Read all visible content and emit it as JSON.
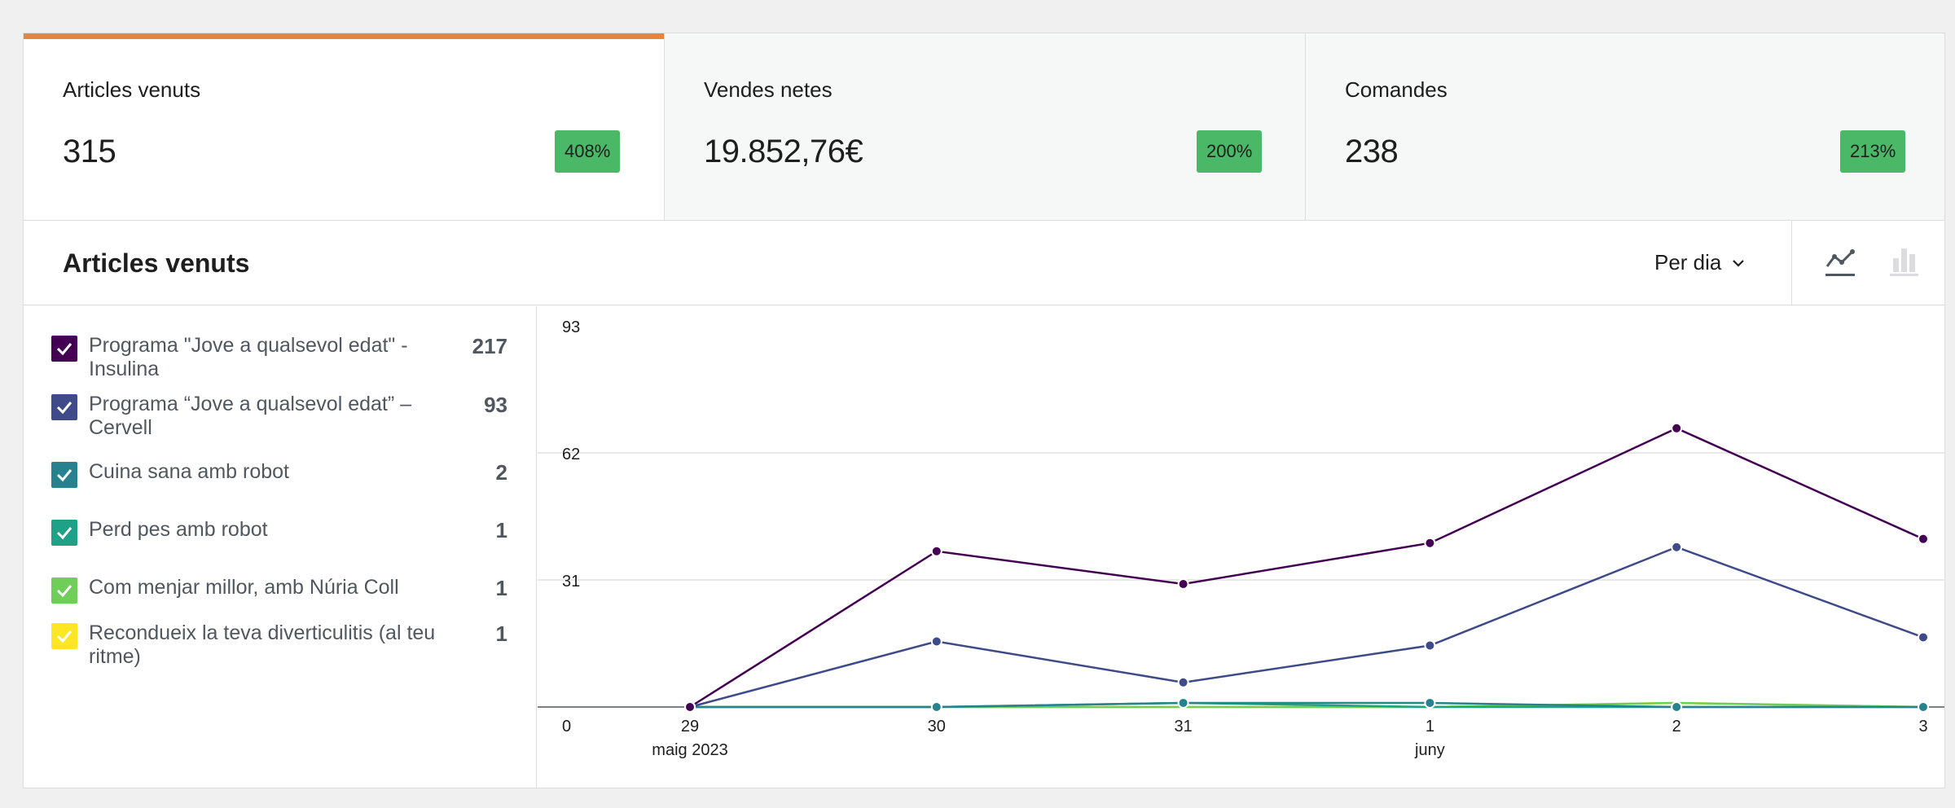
{
  "tiles": [
    {
      "label": "Articles venuts",
      "value": "315",
      "delta": "408%"
    },
    {
      "label": "Vendes netes",
      "value": "19.852,76€",
      "delta": "200%"
    },
    {
      "label": "Comandes",
      "value": "238",
      "delta": "213%"
    }
  ],
  "header": {
    "title": "Articles venuts",
    "interval": "Per dia",
    "chart_types": [
      "line-chart-icon",
      "bar-chart-icon"
    ]
  },
  "legend": [
    {
      "label": "Programa \"Jove a qualsevol edat\" - Insulina",
      "value": "217",
      "color": "#440154"
    },
    {
      "label": "Programa “Jove a qualsevol edat” – Cervell",
      "value": "93",
      "color": "#3e4a89"
    },
    {
      "label": "Cuina sana amb robot",
      "value": "2",
      "color": "#26828e"
    },
    {
      "label": "Perd pes amb robot",
      "value": "1",
      "color": "#1fa187"
    },
    {
      "label": "Com menjar millor, amb Núria Coll",
      "value": "1",
      "color": "#6ece58"
    },
    {
      "label": "Recondueix la teva diverticulitis (al teu ritme)",
      "value": "1",
      "color": "#fde725"
    }
  ],
  "chart_data": {
    "type": "line",
    "x": [
      "29",
      "30",
      "31",
      "1",
      "2",
      "3"
    ],
    "x_sublabels": [
      "maig 2023",
      "",
      "",
      "juny",
      "",
      ""
    ],
    "y_ticks": [
      "0",
      "31",
      "62",
      "93"
    ],
    "ylim": [
      0,
      93
    ],
    "grid": true,
    "series": [
      {
        "name": "Programa \"Jove a qualsevol edat\" - Insulina",
        "color": "#440154",
        "values": [
          0,
          38,
          30,
          40,
          68,
          41
        ]
      },
      {
        "name": "Programa “Jove a qualsevol edat” – Cervell",
        "color": "#3e4a89",
        "values": [
          0,
          16,
          6,
          15,
          39,
          17
        ]
      },
      {
        "name": "Cuina sana amb robot",
        "color": "#26828e",
        "values": [
          0,
          0,
          1,
          1,
          0,
          0
        ]
      },
      {
        "name": "Perd pes amb robot",
        "color": "#1fa187",
        "values": [
          0,
          0,
          1,
          0,
          0,
          0
        ]
      },
      {
        "name": "Com menjar millor, amb Núria Coll",
        "color": "#6ece58",
        "values": [
          0,
          0,
          0,
          0,
          1,
          0
        ]
      },
      {
        "name": "Recondueix la teva diverticulitis (al teu ritme)",
        "color": "#fde725",
        "values": [
          0,
          0,
          0,
          0,
          1,
          0
        ]
      }
    ]
  }
}
